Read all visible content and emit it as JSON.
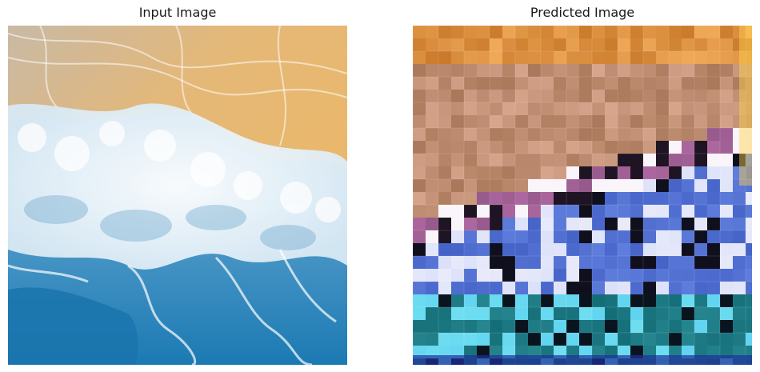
{
  "panels": [
    {
      "title": "Input Image",
      "content": "aerial-beach-wave-photo"
    },
    {
      "title": "Predicted Image",
      "content": "blocky-reconstructed-wave"
    }
  ],
  "colors": {
    "sand_light": "#f2d29a",
    "sand_dark": "#d9a24e",
    "foam": "#eaf4fb",
    "ocean_deep": "#1f7fb8",
    "ocean_mid": "#3a9bd0",
    "pred_brown": "#b9876a",
    "pred_blue": "#5a7fd0",
    "pred_teal": "#1f8a8f"
  }
}
